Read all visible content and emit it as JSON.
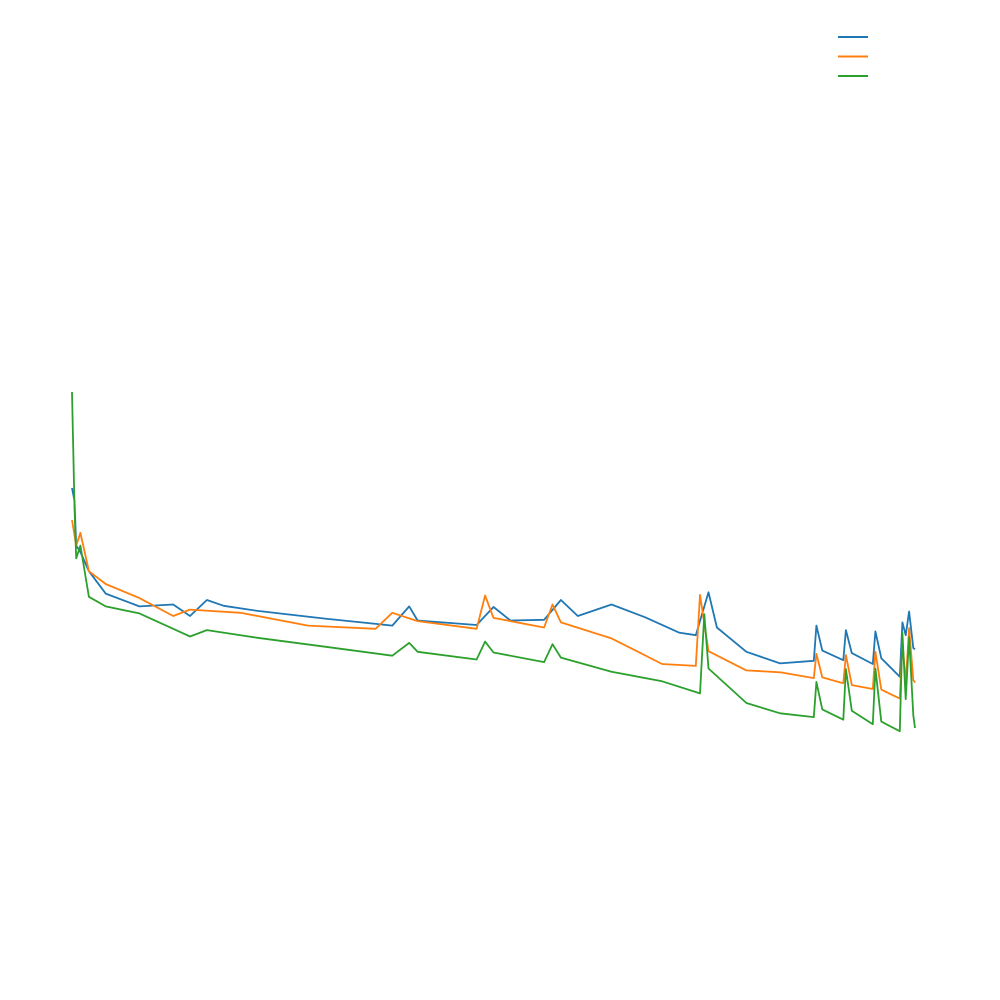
{
  "chart_data": {
    "type": "line",
    "title": "",
    "xlabel": "",
    "ylabel": "",
    "xlim": [
      0,
      1000
    ],
    "ylim": [
      0,
      100
    ],
    "grid": false,
    "axes_visible": false,
    "legend": {
      "placement": "top-right",
      "show_labels": false
    },
    "series": [
      {
        "color": "#1f77b4",
        "points": [
          [
            0,
            55
          ],
          [
            3,
            53
          ],
          [
            5,
            46
          ],
          [
            10,
            45
          ],
          [
            20,
            42
          ],
          [
            40,
            38.5
          ],
          [
            80,
            36.5
          ],
          [
            120,
            36.8
          ],
          [
            140,
            35.0
          ],
          [
            160,
            37.5
          ],
          [
            180,
            36.6
          ],
          [
            220,
            35.8
          ],
          [
            300,
            34.6
          ],
          [
            380,
            33.5
          ],
          [
            400,
            36.5
          ],
          [
            410,
            34.3
          ],
          [
            480,
            33.6
          ],
          [
            500,
            36.4
          ],
          [
            520,
            34.3
          ],
          [
            560,
            34.4
          ],
          [
            580,
            37.5
          ],
          [
            600,
            35.0
          ],
          [
            640,
            36.8
          ],
          [
            680,
            34.8
          ],
          [
            720,
            32.4
          ],
          [
            740,
            32.0
          ],
          [
            755,
            38.7
          ],
          [
            765,
            33.2
          ],
          [
            800,
            29.4
          ],
          [
            840,
            27.6
          ],
          [
            880,
            28.0
          ],
          [
            883,
            33.5
          ],
          [
            890,
            29.6
          ],
          [
            915,
            28.1
          ],
          [
            918,
            32.8
          ],
          [
            925,
            29.2
          ],
          [
            950,
            27.5
          ],
          [
            953,
            32.6
          ],
          [
            960,
            28.4
          ],
          [
            982,
            25.5
          ],
          [
            985,
            34.0
          ],
          [
            989,
            32.0
          ],
          [
            993,
            35.7
          ],
          [
            998,
            30.0
          ],
          [
            1000,
            29.8
          ]
        ]
      },
      {
        "color": "#ff7f0e",
        "points": [
          [
            0,
            50
          ],
          [
            5,
            46
          ],
          [
            10,
            48
          ],
          [
            20,
            42
          ],
          [
            40,
            40
          ],
          [
            80,
            37.8
          ],
          [
            120,
            35.0
          ],
          [
            140,
            36.0
          ],
          [
            200,
            35.5
          ],
          [
            280,
            33.5
          ],
          [
            360,
            33.0
          ],
          [
            380,
            35.5
          ],
          [
            410,
            34.2
          ],
          [
            480,
            33.0
          ],
          [
            490,
            38.2
          ],
          [
            500,
            34.7
          ],
          [
            560,
            33.2
          ],
          [
            570,
            36.8
          ],
          [
            580,
            34.0
          ],
          [
            640,
            31.5
          ],
          [
            700,
            27.5
          ],
          [
            740,
            27.2
          ],
          [
            745,
            38.3
          ],
          [
            755,
            29.5
          ],
          [
            800,
            26.5
          ],
          [
            840,
            26.2
          ],
          [
            880,
            25.3
          ],
          [
            883,
            29.1
          ],
          [
            890,
            25.4
          ],
          [
            915,
            24.5
          ],
          [
            918,
            28.9
          ],
          [
            925,
            24.2
          ],
          [
            950,
            23.6
          ],
          [
            953,
            29.4
          ],
          [
            960,
            23.5
          ],
          [
            982,
            22.1
          ],
          [
            985,
            31.2
          ],
          [
            989,
            24.5
          ],
          [
            993,
            33.1
          ],
          [
            998,
            25.0
          ],
          [
            1000,
            24.6
          ]
        ]
      },
      {
        "color": "#2ca02c",
        "points": [
          [
            0,
            70
          ],
          [
            3,
            52
          ],
          [
            5,
            44
          ],
          [
            10,
            46
          ],
          [
            20,
            38
          ],
          [
            40,
            36.5
          ],
          [
            80,
            35.4
          ],
          [
            120,
            33.0
          ],
          [
            140,
            31.8
          ],
          [
            160,
            32.8
          ],
          [
            220,
            31.6
          ],
          [
            300,
            30.2
          ],
          [
            380,
            28.8
          ],
          [
            400,
            30.8
          ],
          [
            410,
            29.4
          ],
          [
            480,
            28.2
          ],
          [
            490,
            31.0
          ],
          [
            500,
            29.3
          ],
          [
            560,
            27.8
          ],
          [
            570,
            30.6
          ],
          [
            580,
            28.5
          ],
          [
            640,
            26.3
          ],
          [
            700,
            24.8
          ],
          [
            745,
            22.9
          ],
          [
            750,
            35.3
          ],
          [
            755,
            26.8
          ],
          [
            800,
            21.4
          ],
          [
            840,
            19.8
          ],
          [
            880,
            19.2
          ],
          [
            883,
            24.7
          ],
          [
            890,
            20.4
          ],
          [
            915,
            18.8
          ],
          [
            918,
            26.7
          ],
          [
            925,
            20.2
          ],
          [
            950,
            18.1
          ],
          [
            953,
            26.8
          ],
          [
            960,
            18.5
          ],
          [
            982,
            17.0
          ],
          [
            985,
            32.4
          ],
          [
            989,
            22.0
          ],
          [
            993,
            31.7
          ],
          [
            998,
            19.5
          ],
          [
            1000,
            17.5
          ]
        ]
      }
    ]
  }
}
